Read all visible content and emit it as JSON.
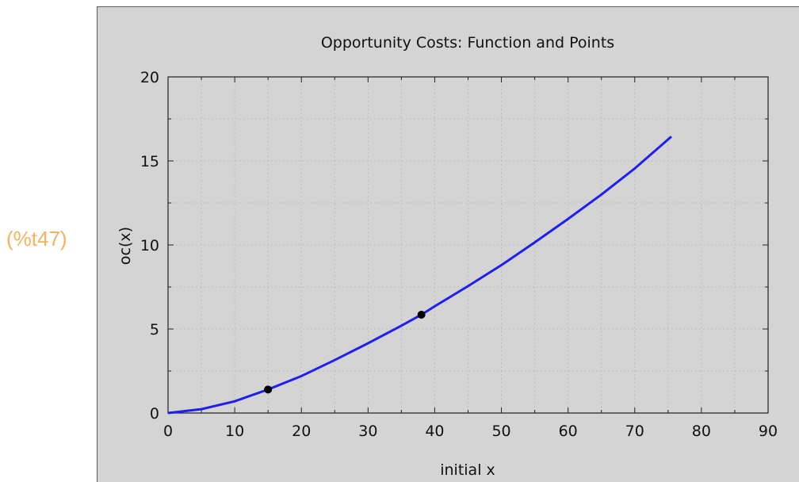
{
  "output_label": "(%t47)",
  "colors": {
    "plot_bg": "#d4d4d4",
    "curve": "#1f1ff0",
    "points": "#000000",
    "output_label": "#f5b25e"
  },
  "chart_data": {
    "type": "line",
    "title": "Opportunity Costs: Function and Points",
    "xlabel": "initial x",
    "ylabel": "oc(x)",
    "xlim": [
      0,
      90
    ],
    "ylim": [
      0,
      20
    ],
    "xticks": [
      "0",
      "10",
      "20",
      "30",
      "40",
      "50",
      "60",
      "70",
      "80",
      "90"
    ],
    "yticks": [
      "0",
      "5",
      "10",
      "15",
      "20"
    ],
    "grid": true,
    "series": [
      {
        "kind": "line",
        "x": [
          0,
          5,
          10,
          15,
          20,
          25,
          30,
          35,
          38,
          40,
          45,
          50,
          55,
          60,
          65,
          70,
          75.5
        ],
        "y": [
          0,
          0.23,
          0.7,
          1.4,
          2.2,
          3.15,
          4.15,
          5.2,
          5.85,
          6.35,
          7.55,
          8.8,
          10.15,
          11.55,
          13.0,
          14.55,
          16.45
        ]
      },
      {
        "kind": "points",
        "x": [
          15,
          38
        ],
        "y": [
          1.4,
          5.85
        ]
      }
    ]
  }
}
